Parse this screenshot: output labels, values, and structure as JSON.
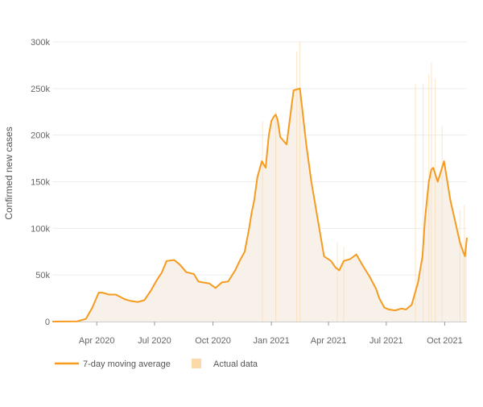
{
  "chart_data": {
    "type": "area",
    "title": "",
    "ylabel": "Confirmed new cases",
    "xlabel": "",
    "ylim": [
      0,
      300000
    ],
    "yticks": [
      {
        "value": 0,
        "label": "0"
      },
      {
        "value": 50000,
        "label": "50k"
      },
      {
        "value": 100000,
        "label": "100k"
      },
      {
        "value": 150000,
        "label": "150k"
      },
      {
        "value": 200000,
        "label": "200k"
      },
      {
        "value": 250000,
        "label": "250k"
      },
      {
        "value": 300000,
        "label": "300k"
      }
    ],
    "xlim": [
      "2020-01-22",
      "2021-11-05"
    ],
    "xticks": [
      {
        "value": "2020-04-01",
        "label": "Apr 2020"
      },
      {
        "value": "2020-07-01",
        "label": "Jul 2020"
      },
      {
        "value": "2020-10-01",
        "label": "Oct 2020"
      },
      {
        "value": "2021-01-01",
        "label": "Jan 2021"
      },
      {
        "value": "2021-04-01",
        "label": "Apr 2021"
      },
      {
        "value": "2021-07-01",
        "label": "Jul 2021"
      },
      {
        "value": "2021-10-01",
        "label": "Oct 2021"
      }
    ],
    "grid": "horizontal",
    "legend_position": "bottom-left",
    "colors": {
      "moving_average": "#f59b1f",
      "actual": "#fdd9a8",
      "area_fill": "#f7f1ea"
    },
    "series": [
      {
        "name": "7-day moving average",
        "style": "line",
        "x": [
          "2020-01-22",
          "2020-03-01",
          "2020-03-15",
          "2020-03-25",
          "2020-04-04",
          "2020-04-10",
          "2020-04-20",
          "2020-05-01",
          "2020-05-15",
          "2020-05-25",
          "2020-06-05",
          "2020-06-15",
          "2020-06-25",
          "2020-07-05",
          "2020-07-12",
          "2020-07-20",
          "2020-08-01",
          "2020-08-10",
          "2020-08-20",
          "2020-09-01",
          "2020-09-08",
          "2020-09-15",
          "2020-09-25",
          "2020-10-05",
          "2020-10-15",
          "2020-10-25",
          "2020-11-05",
          "2020-11-12",
          "2020-11-20",
          "2020-11-27",
          "2020-12-01",
          "2020-12-05",
          "2020-12-10",
          "2020-12-17",
          "2020-12-23",
          "2020-12-28",
          "2021-01-01",
          "2021-01-05",
          "2021-01-08",
          "2021-01-11",
          "2021-01-15",
          "2021-01-25",
          "2021-02-05",
          "2021-02-15",
          "2021-02-25",
          "2021-03-05",
          "2021-03-15",
          "2021-03-25",
          "2021-04-05",
          "2021-04-12",
          "2021-04-18",
          "2021-04-25",
          "2021-05-05",
          "2021-05-15",
          "2021-05-25",
          "2021-06-05",
          "2021-06-15",
          "2021-06-20",
          "2021-06-28",
          "2021-07-05",
          "2021-07-15",
          "2021-07-25",
          "2021-08-01",
          "2021-08-10",
          "2021-08-20",
          "2021-08-27",
          "2021-08-31",
          "2021-09-03",
          "2021-09-06",
          "2021-09-10",
          "2021-09-13",
          "2021-09-20",
          "2021-09-30",
          "2021-10-10",
          "2021-10-20",
          "2021-10-25",
          "2021-10-30",
          "2021-11-02",
          "2021-11-05"
        ],
        "y": [
          0,
          200,
          3000,
          15000,
          31000,
          31000,
          29000,
          29000,
          24000,
          22000,
          21000,
          23000,
          33000,
          45000,
          52000,
          65000,
          66000,
          61000,
          53000,
          51000,
          43000,
          42000,
          41000,
          36000,
          42000,
          43000,
          55000,
          65000,
          75000,
          100000,
          117000,
          130000,
          155000,
          172000,
          165000,
          200000,
          215000,
          220000,
          222000,
          216000,
          198000,
          190000,
          248000,
          250000,
          190000,
          150000,
          110000,
          70000,
          65000,
          58000,
          55000,
          65000,
          67000,
          72000,
          60000,
          48000,
          35000,
          25000,
          15000,
          13000,
          12000,
          14000,
          13000,
          18000,
          42000,
          70000,
          110000,
          130000,
          150000,
          163000,
          165000,
          150000,
          172000,
          130000,
          100000,
          85000,
          75000,
          70000,
          90000
        ]
      },
      {
        "name": "Actual data",
        "style": "bar",
        "x": [
          "2020-12-18",
          "2021-01-08",
          "2021-02-10",
          "2021-02-15",
          "2021-04-15",
          "2021-04-25",
          "2021-08-16",
          "2021-08-28",
          "2021-09-06",
          "2021-09-10",
          "2021-09-16",
          "2021-09-27",
          "2021-10-25",
          "2021-11-01"
        ],
        "y": [
          215000,
          225000,
          290000,
          300000,
          85000,
          80000,
          255000,
          255000,
          265000,
          278000,
          260000,
          210000,
          120000,
          125000
        ]
      }
    ]
  }
}
